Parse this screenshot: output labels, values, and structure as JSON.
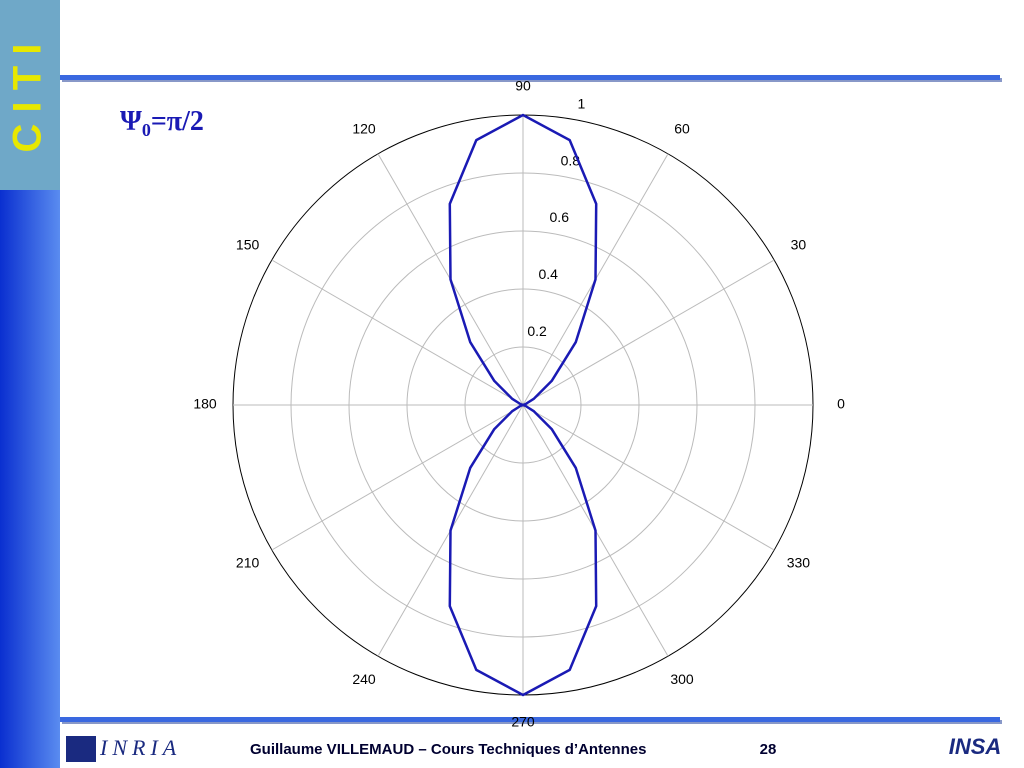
{
  "logo_left": "C I T I",
  "slide_title": {
    "base": "Ψ",
    "sub": "0",
    "rest": "=π/2"
  },
  "chart_data": {
    "type": "polar",
    "theta": [
      0,
      10,
      20,
      30,
      40,
      50,
      60,
      70,
      80,
      90,
      100,
      110,
      120,
      130,
      140,
      150,
      160,
      170,
      180,
      190,
      200,
      210,
      220,
      230,
      240,
      250,
      260,
      270,
      280,
      290,
      300,
      310,
      320,
      330,
      340,
      350,
      360
    ],
    "values": [
      0,
      0.0006,
      0.0089,
      0.0437,
      0.1292,
      0.2833,
      0.5,
      0.738,
      0.9274,
      1,
      0.9274,
      0.738,
      0.5,
      0.2833,
      0.1292,
      0.0437,
      0.0089,
      0.0006,
      0,
      0.0006,
      0.0089,
      0.0437,
      0.1292,
      0.2833,
      0.5,
      0.738,
      0.9274,
      1,
      0.9274,
      0.738,
      0.5,
      0.2833,
      0.1292,
      0.0437,
      0.0089,
      0.0006,
      0
    ],
    "color": "#1a1ab4",
    "rlim": [
      0,
      1
    ],
    "rticks": [
      0.2,
      0.4,
      0.6,
      0.8,
      1
    ],
    "thetaticks": [
      0,
      30,
      60,
      90,
      120,
      150,
      180,
      210,
      240,
      270,
      300,
      330
    ],
    "grid": true
  },
  "footer": {
    "logo_inria": "INRIA",
    "text": "Guillaume VILLEMAUD – Cours Techniques d’Antennes",
    "page": "28",
    "logo_insa": "INSA"
  }
}
